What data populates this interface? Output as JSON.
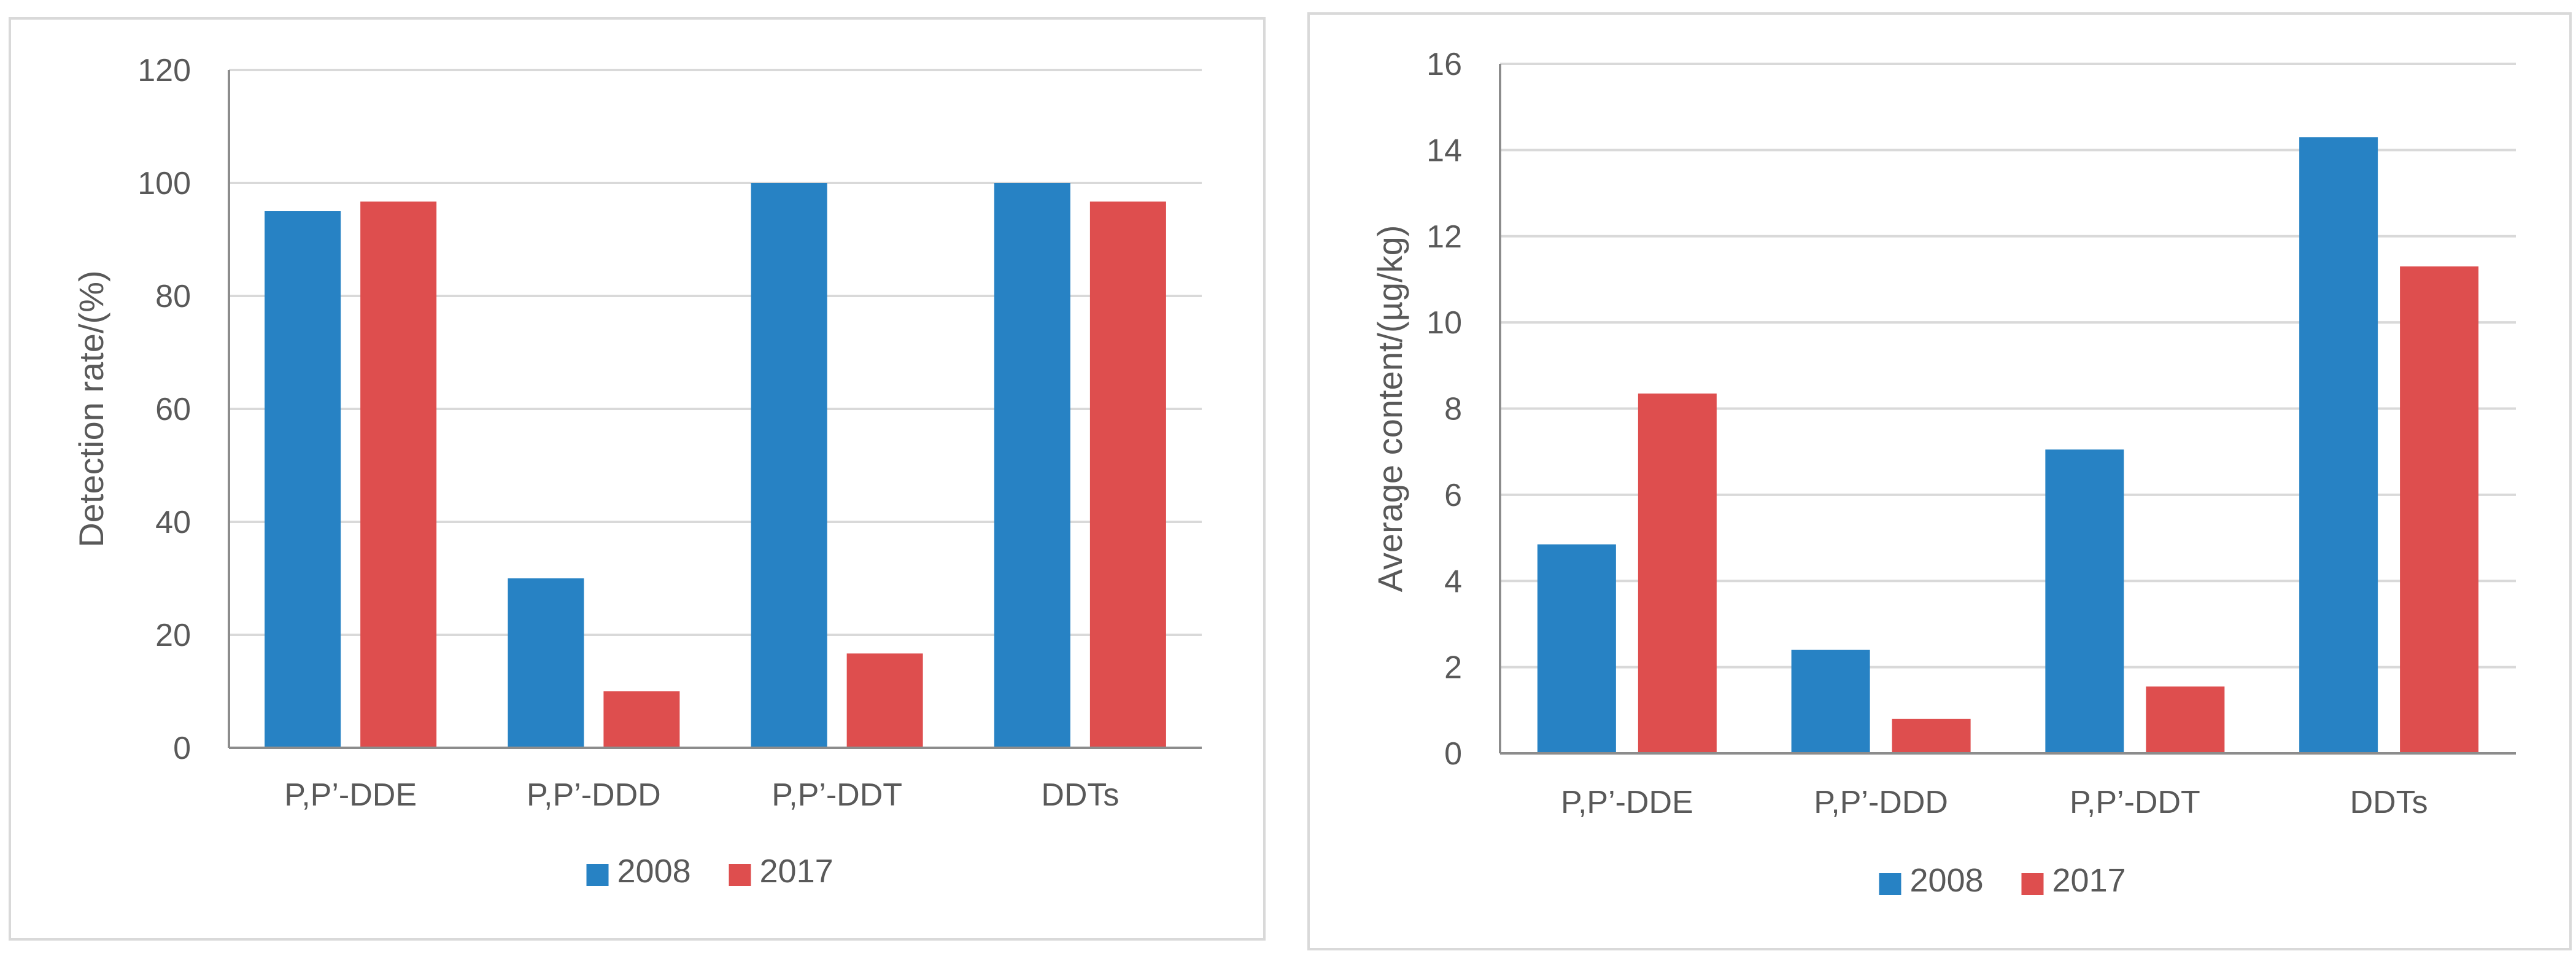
{
  "colors": {
    "series_2008": "#2782c4",
    "series_2017": "#de4e4e",
    "grid": "#d9d9d9",
    "axis": "#8c8c8c",
    "text": "#595959"
  },
  "chart_data": [
    {
      "type": "bar",
      "title": "",
      "categories": [
        "P,P’-DDE",
        "P,P’-DDD",
        "P,P’-DDT",
        "DDTs"
      ],
      "series": [
        {
          "name": "2008",
          "values": [
            95,
            30,
            100,
            100
          ]
        },
        {
          "name": "2017",
          "values": [
            96.7,
            10,
            16.7,
            96.7
          ]
        }
      ],
      "xlabel": "",
      "ylabel": "Detection rate/(%)",
      "ylim": [
        0,
        120
      ],
      "yticks": [
        0,
        20,
        40,
        60,
        80,
        100,
        120
      ],
      "grid": true,
      "legend": "bottom"
    },
    {
      "type": "bar",
      "title": "",
      "categories": [
        "P,P’-DDE",
        "P,P’-DDD",
        "P,P’-DDT",
        "DDTs"
      ],
      "series": [
        {
          "name": "2008",
          "values": [
            4.85,
            2.4,
            7.05,
            14.3
          ]
        },
        {
          "name": "2017",
          "values": [
            8.35,
            0.8,
            1.55,
            11.3
          ]
        }
      ],
      "xlabel": "",
      "ylabel": "Average content/(µg/kg)",
      "ylim": [
        0,
        16
      ],
      "yticks": [
        0,
        2,
        4,
        6,
        8,
        10,
        12,
        14,
        16
      ],
      "grid": true,
      "legend": "bottom"
    }
  ]
}
